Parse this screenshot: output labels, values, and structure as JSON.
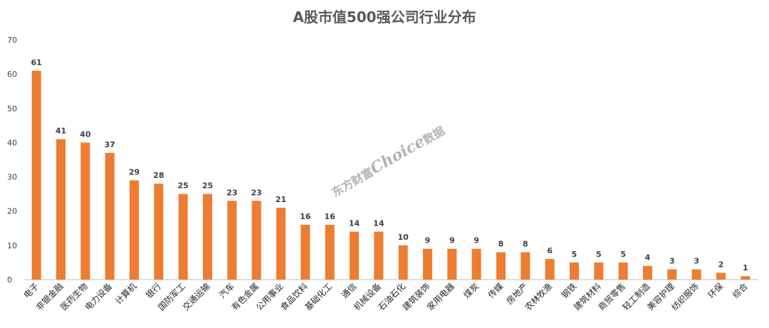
{
  "chart_data": {
    "type": "bar",
    "title": "A股市值500强公司行业分布",
    "categories": [
      "电子",
      "非银金融",
      "医药生物",
      "电力设备",
      "计算机",
      "银行",
      "国防军工",
      "交通运输",
      "汽车",
      "有色金属",
      "公用事业",
      "食品饮料",
      "基础化工",
      "通信",
      "机械设备",
      "石油石化",
      "建筑装饰",
      "家用电器",
      "煤炭",
      "传媒",
      "房地产",
      "农林牧渔",
      "钢铁",
      "建筑材料",
      "商贸零售",
      "轻工制造",
      "美容护理",
      "纺织服饰",
      "环保",
      "综合"
    ],
    "values": [
      61,
      41,
      40,
      37,
      29,
      28,
      25,
      25,
      23,
      23,
      21,
      16,
      16,
      14,
      14,
      10,
      9,
      9,
      9,
      8,
      8,
      6,
      5,
      5,
      5,
      4,
      3,
      3,
      2,
      1
    ],
    "ylim": [
      0,
      70
    ],
    "yticks": [
      0,
      10,
      20,
      30,
      40,
      50,
      60,
      70
    ],
    "xlabel": "",
    "ylabel": "",
    "grid": false,
    "bar_color": "#ED7D31",
    "data_labels": true
  },
  "watermark": {
    "prefix": "东方财富",
    "brand": "Choice",
    "suffix": "数据"
  }
}
